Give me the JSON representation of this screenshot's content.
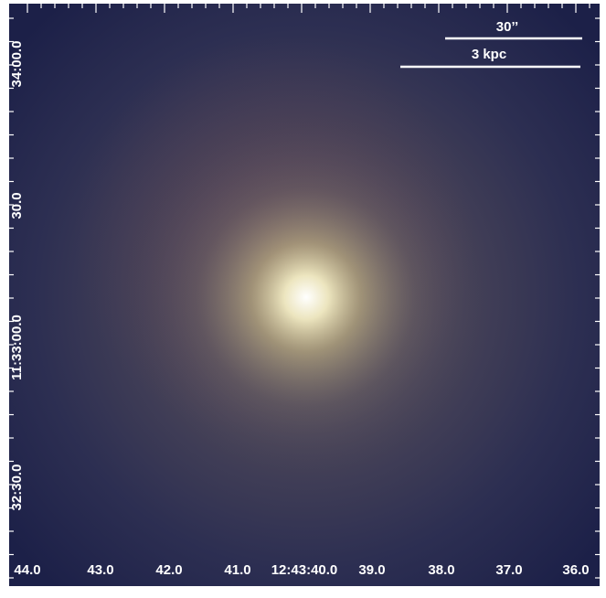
{
  "image": {
    "x_tick_labels": [
      "44.0",
      "43.0",
      "42.0",
      "41.0",
      "12:43:40.0",
      "39.0",
      "38.0",
      "37.0",
      "36.0"
    ],
    "y_tick_labels": [
      "34:00.0",
      "30.0",
      "11:33:00.0",
      "32:30.0"
    ],
    "scale_bars": [
      {
        "label": "30’’"
      },
      {
        "label": "3 kpc"
      }
    ]
  }
}
